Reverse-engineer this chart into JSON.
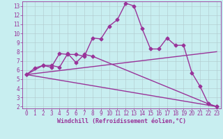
{
  "xlabel": "Windchill (Refroidissement éolien,°C)",
  "xlim": [
    -0.5,
    23.5
  ],
  "ylim": [
    1.8,
    13.5
  ],
  "xticks": [
    0,
    1,
    2,
    3,
    4,
    5,
    6,
    7,
    8,
    9,
    10,
    11,
    12,
    13,
    14,
    15,
    16,
    17,
    18,
    19,
    20,
    21,
    22,
    23
  ],
  "yticks": [
    2,
    3,
    4,
    5,
    6,
    7,
    8,
    9,
    10,
    11,
    12,
    13
  ],
  "bg_color": "#c8eef0",
  "grid_color": "#b0c8cc",
  "line_color": "#993399",
  "line1_x": [
    0,
    1,
    2,
    3,
    4,
    5,
    6,
    7,
    8,
    9,
    10,
    11,
    12,
    13,
    14,
    15,
    16,
    17,
    18,
    19,
    20,
    21,
    22,
    23
  ],
  "line1_y": [
    5.5,
    6.2,
    6.5,
    6.3,
    7.8,
    7.7,
    7.7,
    7.5,
    9.5,
    9.4,
    10.8,
    11.5,
    13.3,
    13.0,
    10.5,
    8.3,
    8.3,
    9.5,
    8.7,
    8.7,
    5.7,
    4.2,
    2.3,
    2.0
  ],
  "line2_x": [
    0,
    2,
    3,
    4,
    5,
    6,
    7,
    8,
    22,
    23
  ],
  "line2_y": [
    5.5,
    6.5,
    6.5,
    6.3,
    7.8,
    6.8,
    7.7,
    7.5,
    2.3,
    2.0
  ],
  "line3_x": [
    0,
    23
  ],
  "line3_y": [
    5.5,
    8.0
  ],
  "line4_x": [
    0,
    23
  ],
  "line4_y": [
    5.5,
    2.0
  ],
  "marker": "D",
  "markersize": 2.5,
  "linewidth": 1.0,
  "tick_fontsize": 5.5,
  "xlabel_fontsize": 6.0
}
